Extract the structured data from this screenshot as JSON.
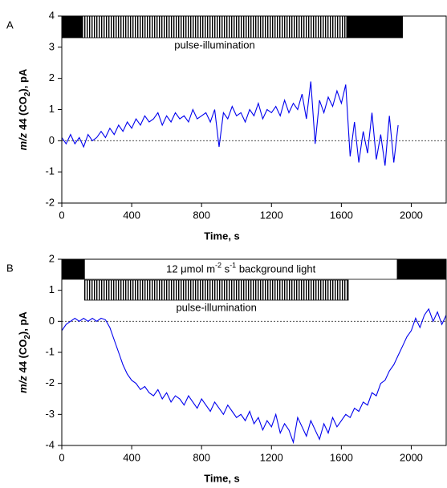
{
  "chart_data": [
    {
      "type": "line",
      "panel_label": "A",
      "x_label": "Time, s",
      "y_label": [
        "m/z",
        " 44 (CO",
        "2",
        "), pA"
      ],
      "xlim": [
        0,
        2200
      ],
      "xticks": [
        0,
        400,
        800,
        1200,
        1600,
        2000
      ],
      "ylim": [
        -2,
        4
      ],
      "yticks": [
        -2,
        -1,
        0,
        1,
        2,
        3,
        4
      ],
      "hline": 0,
      "color": "#0000ee",
      "bar_rows": [
        [
          {
            "start": 0,
            "end": 120,
            "style": "solid"
          },
          {
            "start": 120,
            "end": 1630,
            "style": "hatched"
          },
          {
            "start": 1630,
            "end": 1950,
            "style": "solid"
          }
        ]
      ],
      "pulse_label": "pulse-illumination",
      "x": [
        0,
        25,
        50,
        75,
        100,
        125,
        150,
        175,
        200,
        225,
        250,
        275,
        300,
        325,
        350,
        375,
        400,
        425,
        450,
        475,
        500,
        525,
        550,
        575,
        600,
        625,
        650,
        675,
        700,
        725,
        750,
        775,
        800,
        825,
        850,
        875,
        900,
        925,
        950,
        975,
        1000,
        1025,
        1050,
        1075,
        1100,
        1125,
        1150,
        1175,
        1200,
        1225,
        1250,
        1275,
        1300,
        1325,
        1350,
        1375,
        1400,
        1425,
        1450,
        1475,
        1500,
        1525,
        1550,
        1575,
        1600,
        1625,
        1650,
        1675,
        1700,
        1725,
        1750,
        1775,
        1800,
        1825,
        1850,
        1875,
        1900,
        1925
      ],
      "values": [
        0.1,
        -0.1,
        0.2,
        -0.1,
        0.1,
        -0.2,
        0.2,
        0.0,
        0.1,
        0.3,
        0.1,
        0.4,
        0.2,
        0.5,
        0.3,
        0.6,
        0.4,
        0.7,
        0.5,
        0.8,
        0.6,
        0.7,
        0.9,
        0.5,
        0.8,
        0.6,
        0.9,
        0.7,
        0.8,
        0.6,
        1.0,
        0.7,
        0.8,
        0.9,
        0.6,
        1.0,
        -0.2,
        0.9,
        0.7,
        1.1,
        0.8,
        0.9,
        0.6,
        1.0,
        0.8,
        1.2,
        0.7,
        1.0,
        0.9,
        1.1,
        0.8,
        1.3,
        0.9,
        1.2,
        1.0,
        1.5,
        0.7,
        1.9,
        -0.1,
        1.3,
        0.9,
        1.4,
        1.1,
        1.6,
        1.2,
        1.8,
        -0.5,
        0.6,
        -0.7,
        0.3,
        -0.4,
        0.9,
        -0.6,
        0.2,
        -0.8,
        0.8,
        -0.7,
        0.5
      ]
    },
    {
      "type": "line",
      "panel_label": "B",
      "x_label": "Time, s",
      "y_label": [
        "m/z",
        " 44 (CO",
        "2",
        "), pA"
      ],
      "xlim": [
        0,
        2200
      ],
      "xticks": [
        0,
        400,
        800,
        1200,
        1600,
        2000
      ],
      "ylim": [
        -4,
        2
      ],
      "yticks": [
        -4,
        -3,
        -2,
        -1,
        0,
        1,
        2
      ],
      "hline": 0,
      "color": "#0000ee",
      "bar_rows": [
        [
          {
            "start": 0,
            "end": 130,
            "style": "solid"
          },
          {
            "start": 130,
            "end": 1920,
            "style": "open"
          },
          {
            "start": 1920,
            "end": 2200,
            "style": "solid"
          }
        ],
        [
          {
            "start": 130,
            "end": 1640,
            "style": "hatched"
          }
        ]
      ],
      "background_label": [
        "12 μmol m",
        "-2",
        " s",
        "-1",
        " background light"
      ],
      "pulse_label": "pulse-illumination",
      "x": [
        0,
        25,
        50,
        75,
        100,
        125,
        150,
        175,
        200,
        225,
        250,
        275,
        300,
        325,
        350,
        375,
        400,
        425,
        450,
        475,
        500,
        525,
        550,
        575,
        600,
        625,
        650,
        675,
        700,
        725,
        750,
        775,
        800,
        825,
        850,
        875,
        900,
        925,
        950,
        975,
        1000,
        1025,
        1050,
        1075,
        1100,
        1125,
        1150,
        1175,
        1200,
        1225,
        1250,
        1275,
        1300,
        1325,
        1350,
        1375,
        1400,
        1425,
        1450,
        1475,
        1500,
        1525,
        1550,
        1575,
        1600,
        1625,
        1650,
        1675,
        1700,
        1725,
        1750,
        1775,
        1800,
        1825,
        1850,
        1875,
        1900,
        1925,
        1950,
        1975,
        2000,
        2025,
        2050,
        2075,
        2100,
        2125,
        2150,
        2175,
        2200
      ],
      "values": [
        -0.3,
        -0.1,
        0.0,
        0.1,
        0.0,
        0.1,
        0.0,
        0.1,
        0.0,
        0.1,
        0.05,
        -0.2,
        -0.6,
        -1.0,
        -1.4,
        -1.7,
        -1.9,
        -2.0,
        -2.2,
        -2.1,
        -2.3,
        -2.4,
        -2.2,
        -2.5,
        -2.3,
        -2.6,
        -2.4,
        -2.5,
        -2.7,
        -2.4,
        -2.6,
        -2.8,
        -2.5,
        -2.7,
        -2.9,
        -2.6,
        -2.8,
        -3.0,
        -2.7,
        -2.9,
        -3.1,
        -3.0,
        -3.2,
        -2.9,
        -3.3,
        -3.1,
        -3.5,
        -3.2,
        -3.4,
        -3.0,
        -3.6,
        -3.3,
        -3.5,
        -3.9,
        -3.1,
        -3.4,
        -3.7,
        -3.2,
        -3.5,
        -3.8,
        -3.3,
        -3.6,
        -3.1,
        -3.4,
        -3.2,
        -3.0,
        -3.1,
        -2.8,
        -2.9,
        -2.6,
        -2.7,
        -2.3,
        -2.4,
        -2.0,
        -1.9,
        -1.6,
        -1.4,
        -1.1,
        -0.8,
        -0.5,
        -0.3,
        0.1,
        -0.2,
        0.2,
        0.4,
        0.0,
        0.3,
        -0.1,
        0.2
      ]
    }
  ]
}
